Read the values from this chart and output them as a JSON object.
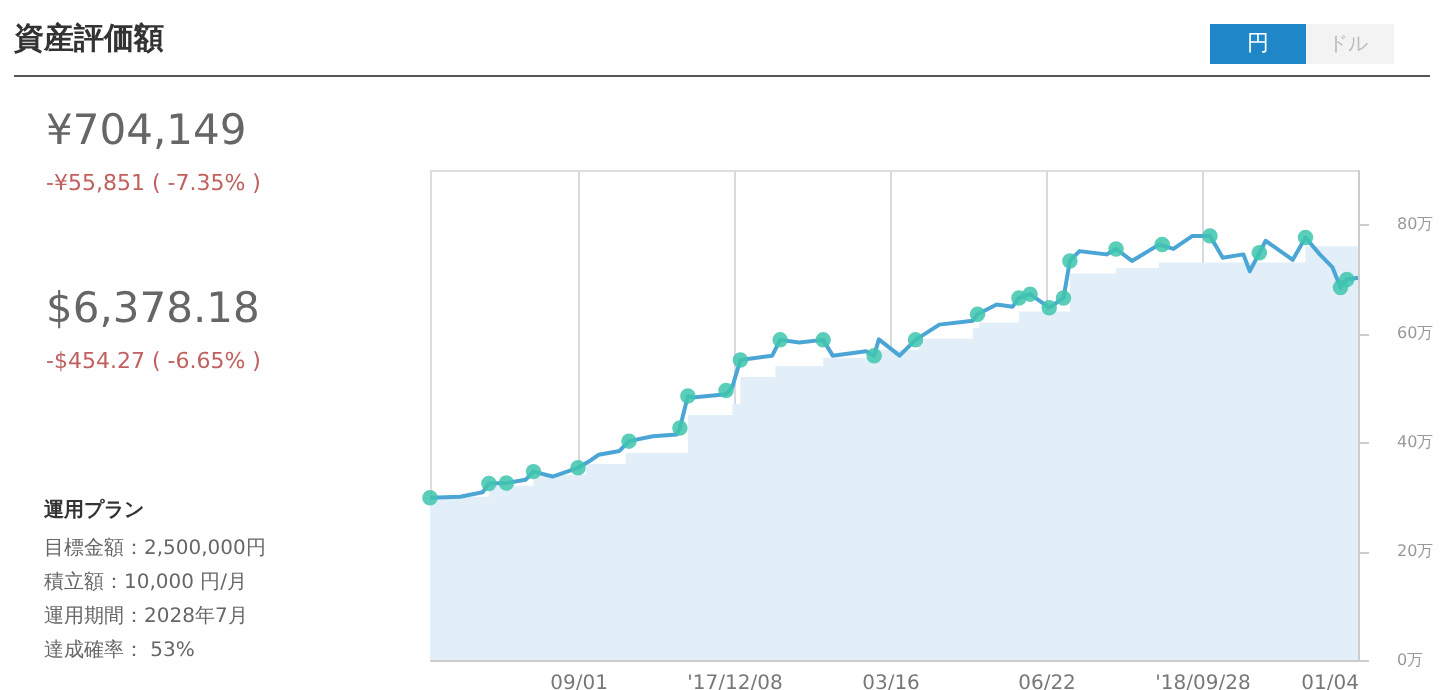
{
  "chart_data": {
    "type": "line",
    "title": "資産評価額",
    "annotations": [
      "円",
      "ドル",
      "¥704,149",
      "-¥55,851 ( -7.35% )",
      "$6,378.18",
      "-$454.27 ( -6.65% )",
      "運用プラン",
      "目標金額：2,500,000円",
      "積立額：10,000 円/月",
      "運用期間：2028年7月",
      "達成確率： 53%"
    ],
    "series": [
      {
        "type": "area",
        "color": "#e2eff9",
        "x": [
          "2017-05-31",
          "2017-07-07",
          "2017-08-04",
          "2017-09-06",
          "2017-10-01",
          "2017-11-09",
          "2017-12-07",
          "2017-12-12",
          "2018-01-03",
          "2018-02-02",
          "2018-03-09",
          "2018-04-03",
          "2018-05-07",
          "2018-05-11",
          "2018-06-05",
          "2018-07-07",
          "2018-08-05",
          "2018-09-01",
          "2018-12-02",
          "2019-01-04"
        ],
        "values": [
          30,
          32,
          34,
          36,
          38,
          45,
          47,
          52,
          54,
          55.5,
          57,
          59,
          61,
          62,
          64,
          71,
          72,
          73,
          76,
          76
        ]
      },
      {
        "color": "#4ba6d6",
        "x": [
          "2017-05-31",
          "2017-06-19",
          "2017-07-03",
          "2017-07-07",
          "2017-07-18",
          "2017-07-30",
          "2017-08-04",
          "2017-08-16",
          "2017-09-01",
          "2017-09-08",
          "2017-09-14",
          "2017-09-27",
          "2017-10-03",
          "2017-10-18",
          "2017-11-02",
          "2017-11-04",
          "2017-11-09",
          "2017-11-12",
          "2017-12-03",
          "2017-12-07",
          "2017-12-12",
          "2018-01-01",
          "2018-01-06",
          "2018-01-18",
          "2018-02-02",
          "2018-02-08",
          "2018-03-01",
          "2018-03-06",
          "2018-03-09",
          "2018-03-22",
          "2018-04-01",
          "2018-04-16",
          "2018-05-07",
          "2018-05-10",
          "2018-05-22",
          "2018-06-01",
          "2018-06-05",
          "2018-06-12",
          "2018-06-24",
          "2018-07-03",
          "2018-07-07",
          "2018-07-13",
          "2018-07-30",
          "2018-08-05",
          "2018-08-15",
          "2018-09-01",
          "2018-09-10",
          "2018-09-22",
          "2018-10-03",
          "2018-10-11",
          "2018-10-24",
          "2018-10-28",
          "2018-11-07",
          "2018-11-24",
          "2018-12-02",
          "2018-12-11",
          "2018-12-19",
          "2018-12-24",
          "2018-12-28",
          "2019-01-04"
        ],
        "values": [
          29.8,
          30.0,
          30.8,
          32.4,
          32.5,
          33.1,
          34.6,
          33.7,
          35.3,
          36.5,
          37.7,
          38.4,
          40.2,
          41.1,
          41.4,
          42.6,
          48.5,
          48.2,
          48.8,
          50.2,
          55.1,
          55.9,
          58.8,
          58.3,
          58.8,
          55.9,
          56.7,
          55.9,
          58.9,
          55.9,
          58.8,
          61.6,
          62.3,
          63.5,
          65.3,
          64.9,
          66.5,
          67.2,
          64.7,
          66.5,
          73.3,
          75.1,
          74.5,
          75.5,
          73.3,
          76.3,
          75.5,
          77.9,
          77.9,
          73.9,
          74.5,
          71.4,
          77.0,
          73.5,
          77.6,
          74.5,
          72.1,
          68.4,
          69.9,
          70.2
        ]
      },
      {
        "type": "scatter",
        "marker": "circle",
        "color": "#3ec5ad",
        "x": [
          "2017-05-31",
          "2017-07-07",
          "2017-07-18",
          "2017-08-04",
          "2017-09-01",
          "2017-10-03",
          "2017-11-04",
          "2017-11-09",
          "2017-12-03",
          "2017-12-12",
          "2018-01-06",
          "2018-02-02",
          "2018-03-06",
          "2018-04-01",
          "2018-05-10",
          "2018-06-05",
          "2018-06-12",
          "2018-06-24",
          "2018-07-03",
          "2018-07-07",
          "2018-08-05",
          "2018-09-03",
          "2018-10-03",
          "2018-11-03",
          "2018-12-02",
          "2018-12-24",
          "2018-12-28"
        ],
        "values": [
          29.8,
          32.4,
          32.5,
          34.6,
          35.3,
          40.2,
          42.6,
          48.5,
          49.5,
          55.1,
          58.8,
          58.8,
          55.9,
          58.8,
          63.5,
          66.5,
          67.2,
          64.7,
          66.5,
          73.3,
          75.5,
          76.3,
          77.9,
          74.8,
          77.6,
          68.4,
          69.9
        ]
      }
    ],
    "xlim": [
      "2017-05-31",
      "2019-01-04"
    ],
    "xticks": [
      {
        "value": "2017-09-01",
        "label": "09/01"
      },
      {
        "value": "2017-12-08",
        "label": "'17/12/08"
      },
      {
        "value": "2018-03-16",
        "label": "03/16"
      },
      {
        "value": "2018-06-22",
        "label": "06/22"
      },
      {
        "value": "2018-09-28",
        "label": "'18/09/28"
      },
      {
        "value": "2019-01-04",
        "label": "01/04"
      }
    ],
    "ylim": [
      0,
      90
    ],
    "yticks": [
      {
        "value": 0,
        "label": "0万"
      },
      {
        "value": 20,
        "label": "20万"
      },
      {
        "value": 40,
        "label": "40万"
      },
      {
        "value": 60,
        "label": "60万"
      },
      {
        "value": 80,
        "label": "80万"
      }
    ],
    "grid": "x",
    "line_style": "solid"
  }
}
